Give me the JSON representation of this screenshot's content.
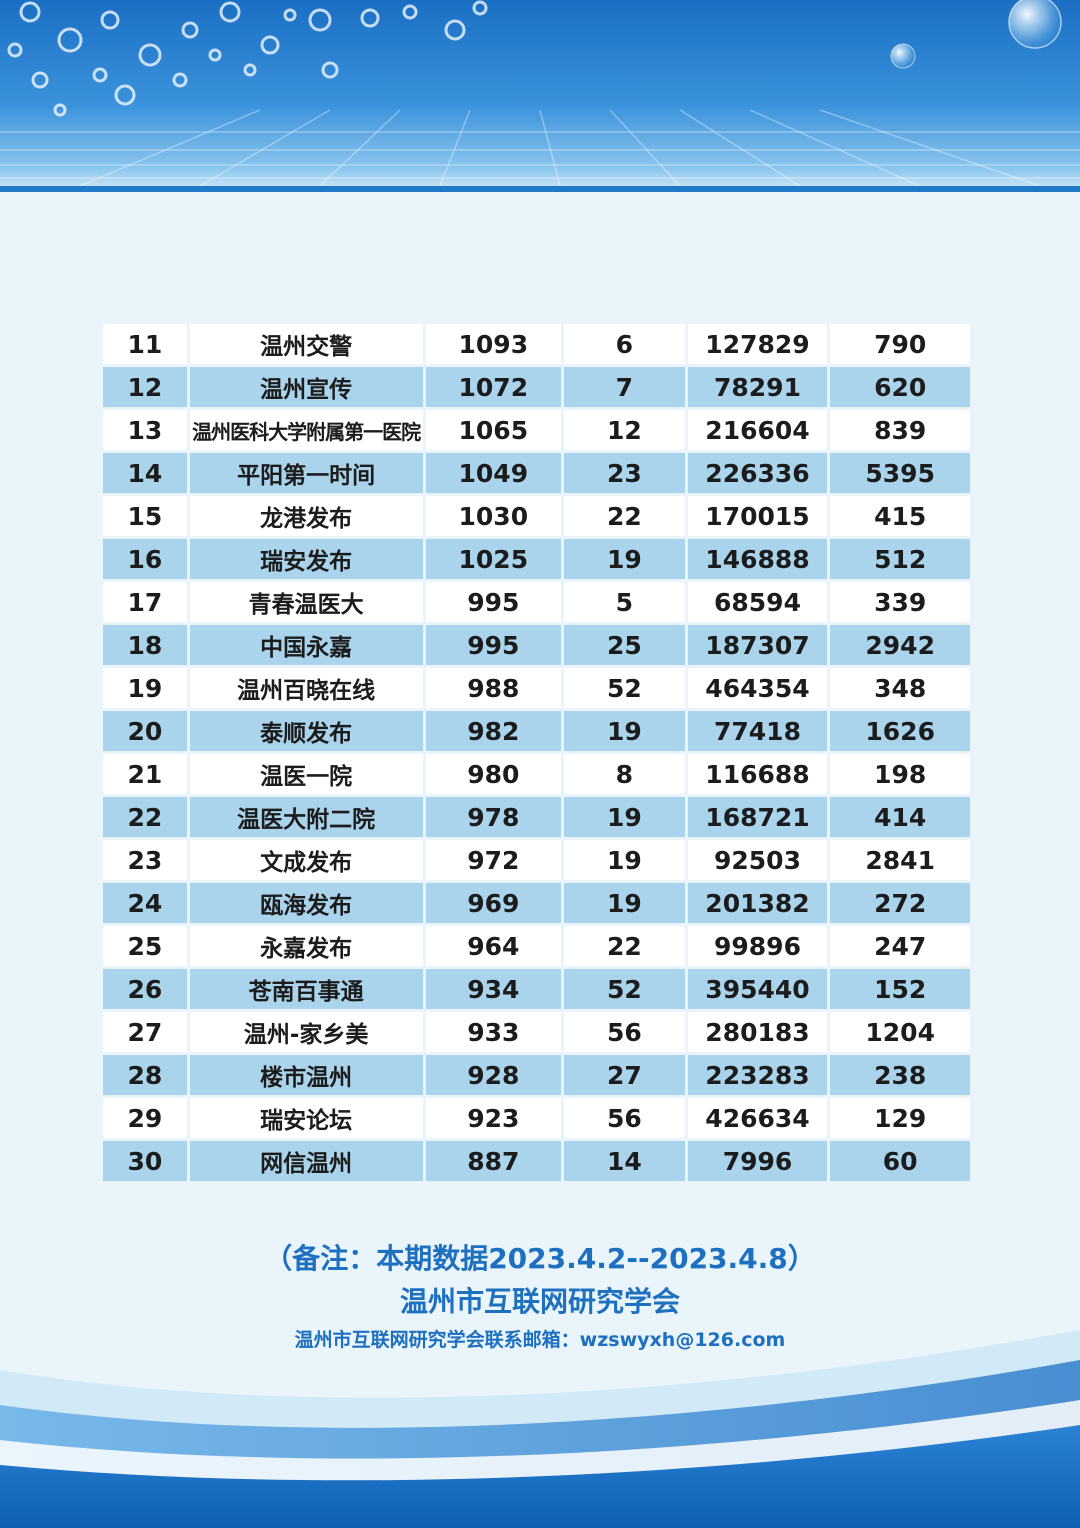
{
  "table": {
    "rows": [
      {
        "rank": "11",
        "name": "温州交警",
        "c3": "1093",
        "c4": "6",
        "c5": "127829",
        "c6": "790"
      },
      {
        "rank": "12",
        "name": "温州宣传",
        "c3": "1072",
        "c4": "7",
        "c5": "78291",
        "c6": "620"
      },
      {
        "rank": "13",
        "name": "温州医科大学附属第一医院",
        "c3": "1065",
        "c4": "12",
        "c5": "216604",
        "c6": "839"
      },
      {
        "rank": "14",
        "name": "平阳第一时间",
        "c3": "1049",
        "c4": "23",
        "c5": "226336",
        "c6": "5395"
      },
      {
        "rank": "15",
        "name": "龙港发布",
        "c3": "1030",
        "c4": "22",
        "c5": "170015",
        "c6": "415"
      },
      {
        "rank": "16",
        "name": "瑞安发布",
        "c3": "1025",
        "c4": "19",
        "c5": "146888",
        "c6": "512"
      },
      {
        "rank": "17",
        "name": "青春温医大",
        "c3": "995",
        "c4": "5",
        "c5": "68594",
        "c6": "339"
      },
      {
        "rank": "18",
        "name": "中国永嘉",
        "c3": "995",
        "c4": "25",
        "c5": "187307",
        "c6": "2942"
      },
      {
        "rank": "19",
        "name": "温州百晓在线",
        "c3": "988",
        "c4": "52",
        "c5": "464354",
        "c6": "348"
      },
      {
        "rank": "20",
        "name": "泰顺发布",
        "c3": "982",
        "c4": "19",
        "c5": "77418",
        "c6": "1626"
      },
      {
        "rank": "21",
        "name": "温医一院",
        "c3": "980",
        "c4": "8",
        "c5": "116688",
        "c6": "198"
      },
      {
        "rank": "22",
        "name": "温医大附二院",
        "c3": "978",
        "c4": "19",
        "c5": "168721",
        "c6": "414"
      },
      {
        "rank": "23",
        "name": "文成发布",
        "c3": "972",
        "c4": "19",
        "c5": "92503",
        "c6": "2841"
      },
      {
        "rank": "24",
        "name": "瓯海发布",
        "c3": "969",
        "c4": "19",
        "c5": "201382",
        "c6": "272"
      },
      {
        "rank": "25",
        "name": "永嘉发布",
        "c3": "964",
        "c4": "22",
        "c5": "99896",
        "c6": "247"
      },
      {
        "rank": "26",
        "name": "苍南百事通",
        "c3": "934",
        "c4": "52",
        "c5": "395440",
        "c6": "152"
      },
      {
        "rank": "27",
        "name": "温州-家乡美",
        "c3": "933",
        "c4": "56",
        "c5": "280183",
        "c6": "1204"
      },
      {
        "rank": "28",
        "name": "楼市温州",
        "c3": "928",
        "c4": "27",
        "c5": "223283",
        "c6": "238"
      },
      {
        "rank": "29",
        "name": "瑞安论坛",
        "c3": "923",
        "c4": "56",
        "c5": "426634",
        "c6": "129"
      },
      {
        "rank": "30",
        "name": "网信温州",
        "c3": "887",
        "c4": "14",
        "c5": "7996",
        "c6": "60"
      }
    ]
  },
  "footer": {
    "note": "（备注：本期数据2023.4.2--2023.4.8）",
    "org": "温州市互联网研究学会",
    "email": "温州市互联网研究学会联系邮箱：wzswyxh@126.com"
  },
  "colors": {
    "row_dark": "#a9d4ec",
    "row_light": "#ffffff",
    "accent_text": "#1d6fc0",
    "header_blue": "#1a6fc4"
  },
  "icons": [
    "bubble-decoration-icon",
    "water-drop-icon"
  ]
}
